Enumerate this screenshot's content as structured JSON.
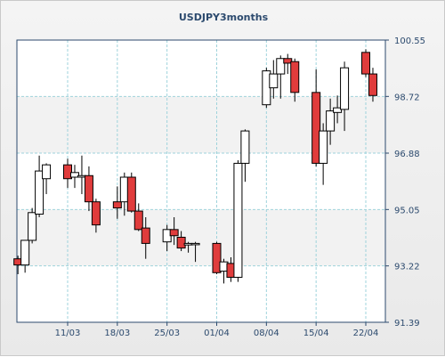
{
  "chart_data": {
    "type": "candlestick",
    "title": "USDJPY3months",
    "xlabel": "",
    "ylabel": "",
    "ylim": [
      91.39,
      100.55
    ],
    "y_ticks": [
      "100.55",
      "98.72",
      "96.88",
      "95.05",
      "93.22",
      "91.39"
    ],
    "x_tick_labels": [
      "11/03",
      "18/03",
      "25/03",
      "01/04",
      "08/04",
      "15/04",
      "22/04"
    ],
    "x_tick_dates": [
      "2013-03-11",
      "2013-03-18",
      "2013-03-25",
      "2013-04-01",
      "2013-04-08",
      "2013-04-15",
      "2013-04-22"
    ],
    "grid": true,
    "colors": {
      "up_fill": "#ffffff",
      "down_fill": "#e03c3c",
      "candle_stroke": "#000000",
      "grid": "#9fd3dc"
    },
    "candles": [
      {
        "date": "2013-03-04",
        "open": 93.45,
        "high": 93.55,
        "low": 92.95,
        "close": 93.25
      },
      {
        "date": "2013-03-05",
        "open": 93.25,
        "high": 94.0,
        "low": 93.0,
        "close": 94.05
      },
      {
        "date": "2013-03-06",
        "open": 94.05,
        "high": 95.1,
        "low": 93.95,
        "close": 94.95
      },
      {
        "date": "2013-03-07",
        "open": 94.9,
        "high": 96.8,
        "low": 94.8,
        "close": 96.3
      },
      {
        "date": "2013-03-08",
        "open": 96.05,
        "high": 96.55,
        "low": 95.55,
        "close": 96.5
      },
      {
        "date": "2013-03-11",
        "open": 96.5,
        "high": 96.7,
        "low": 95.75,
        "close": 96.05
      },
      {
        "date": "2013-03-12",
        "open": 96.1,
        "high": 96.5,
        "low": 95.75,
        "close": 96.25
      },
      {
        "date": "2013-03-13",
        "open": 96.1,
        "high": 96.8,
        "low": 95.55,
        "close": 96.15
      },
      {
        "date": "2013-03-14",
        "open": 96.15,
        "high": 96.45,
        "low": 95.0,
        "close": 95.3
      },
      {
        "date": "2013-03-15",
        "open": 95.3,
        "high": 95.4,
        "low": 94.3,
        "close": 94.55
      },
      {
        "date": "2013-03-18",
        "open": 95.3,
        "high": 95.8,
        "low": 94.75,
        "close": 95.1
      },
      {
        "date": "2013-03-19",
        "open": 95.3,
        "high": 96.25,
        "low": 94.85,
        "close": 96.1
      },
      {
        "date": "2013-03-20",
        "open": 96.1,
        "high": 96.25,
        "low": 94.95,
        "close": 95.0
      },
      {
        "date": "2013-03-21",
        "open": 95.0,
        "high": 95.25,
        "low": 94.35,
        "close": 94.4
      },
      {
        "date": "2013-03-22",
        "open": 94.45,
        "high": 94.8,
        "low": 93.45,
        "close": 93.95
      },
      {
        "date": "2013-03-25",
        "open": 94.0,
        "high": 94.55,
        "low": 93.7,
        "close": 94.4
      },
      {
        "date": "2013-03-26",
        "open": 94.4,
        "high": 94.8,
        "low": 93.9,
        "close": 94.2
      },
      {
        "date": "2013-03-27",
        "open": 94.15,
        "high": 94.35,
        "low": 93.7,
        "close": 93.8
      },
      {
        "date": "2013-03-28",
        "open": 93.9,
        "high": 94.0,
        "low": 93.65,
        "close": 93.95
      },
      {
        "date": "2013-03-29",
        "open": 93.95,
        "high": 94.0,
        "low": 93.35,
        "close": 93.95
      },
      {
        "date": "2013-04-01",
        "open": 93.95,
        "high": 94.0,
        "low": 92.95,
        "close": 93.0
      },
      {
        "date": "2013-04-02",
        "open": 93.05,
        "high": 93.45,
        "low": 92.65,
        "close": 93.35
      },
      {
        "date": "2013-04-03",
        "open": 93.3,
        "high": 93.5,
        "low": 92.7,
        "close": 92.85
      },
      {
        "date": "2013-04-04",
        "open": 92.85,
        "high": 96.65,
        "low": 92.7,
        "close": 96.55
      },
      {
        "date": "2013-04-05",
        "open": 96.55,
        "high": 97.65,
        "low": 95.95,
        "close": 97.6
      },
      {
        "date": "2013-04-08",
        "open": 98.45,
        "high": 99.65,
        "low": 98.35,
        "close": 99.55
      },
      {
        "date": "2013-04-09",
        "open": 99.0,
        "high": 99.9,
        "low": 98.65,
        "close": 99.45
      },
      {
        "date": "2013-04-10",
        "open": 99.45,
        "high": 100.05,
        "low": 98.65,
        "close": 99.95
      },
      {
        "date": "2013-04-11",
        "open": 99.95,
        "high": 100.1,
        "low": 99.45,
        "close": 99.8
      },
      {
        "date": "2013-04-12",
        "open": 99.85,
        "high": 99.95,
        "low": 98.55,
        "close": 98.85
      },
      {
        "date": "2013-04-15",
        "open": 98.85,
        "high": 99.6,
        "low": 96.45,
        "close": 96.55
      },
      {
        "date": "2013-04-16",
        "open": 96.55,
        "high": 97.85,
        "low": 95.85,
        "close": 97.6
      },
      {
        "date": "2013-04-17",
        "open": 97.6,
        "high": 98.65,
        "low": 97.15,
        "close": 98.25
      },
      {
        "date": "2013-04-18",
        "open": 98.2,
        "high": 98.75,
        "low": 97.85,
        "close": 98.35
      },
      {
        "date": "2013-04-19",
        "open": 98.3,
        "high": 99.85,
        "low": 97.6,
        "close": 99.65
      },
      {
        "date": "2013-04-22",
        "open": 100.15,
        "high": 100.25,
        "low": 99.35,
        "close": 99.45
      },
      {
        "date": "2013-04-23",
        "open": 99.45,
        "high": 99.65,
        "low": 98.55,
        "close": 98.75
      }
    ]
  }
}
